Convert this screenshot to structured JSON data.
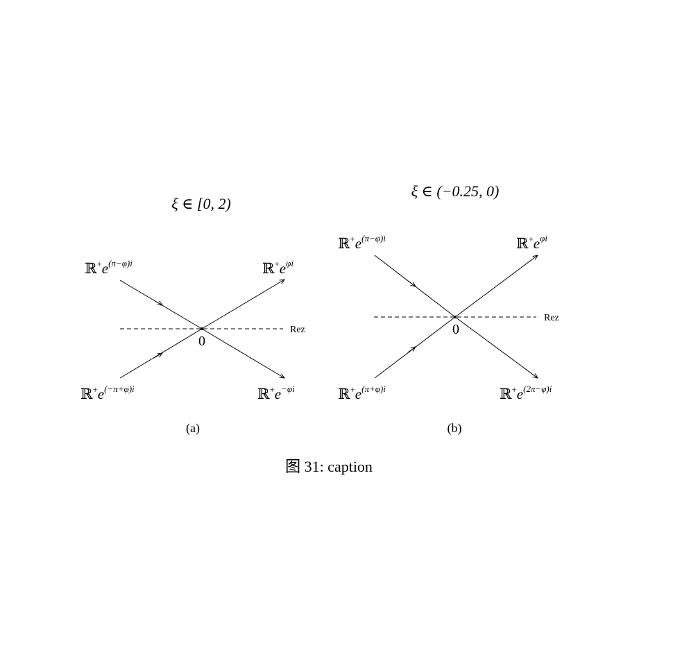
{
  "panels": [
    {
      "id": "a",
      "title": "ξ ∈ [0, 2)",
      "subfig_label": "(a)",
      "origin_label": "0",
      "axis_label": "Rez",
      "rays": [
        {
          "base": "ℝ",
          "sup1": "+",
          "e": "e",
          "exp": "(π−φ)i",
          "direction": "incoming",
          "quadrant": "upper-left"
        },
        {
          "base": "ℝ",
          "sup1": "+",
          "e": "e",
          "exp": "φi",
          "direction": "outgoing",
          "quadrant": "upper-right"
        },
        {
          "base": "ℝ",
          "sup1": "+",
          "e": "e",
          "exp": "(−π+φ)i",
          "direction": "incoming",
          "quadrant": "lower-left"
        },
        {
          "base": "ℝ",
          "sup1": "+",
          "e": "e",
          "exp": "−φi",
          "direction": "outgoing",
          "quadrant": "lower-right"
        }
      ]
    },
    {
      "id": "b",
      "title": "ξ ∈ (−0.25, 0)",
      "subfig_label": "(b)",
      "origin_label": "0",
      "axis_label": "Rez",
      "rays": [
        {
          "base": "ℝ",
          "sup1": "+",
          "e": "e",
          "exp": "(π−φ)i",
          "direction": "incoming",
          "quadrant": "upper-left"
        },
        {
          "base": "ℝ",
          "sup1": "+",
          "e": "e",
          "exp": "φi",
          "direction": "outgoing",
          "quadrant": "upper-right"
        },
        {
          "base": "ℝ",
          "sup1": "+",
          "e": "e",
          "exp": "(π+φ)i",
          "direction": "incoming",
          "quadrant": "lower-left"
        },
        {
          "base": "ℝ",
          "sup1": "+",
          "e": "e",
          "exp": "(2π−φ)i",
          "direction": "outgoing",
          "quadrant": "lower-right"
        }
      ]
    }
  ],
  "caption": "图 31: caption"
}
